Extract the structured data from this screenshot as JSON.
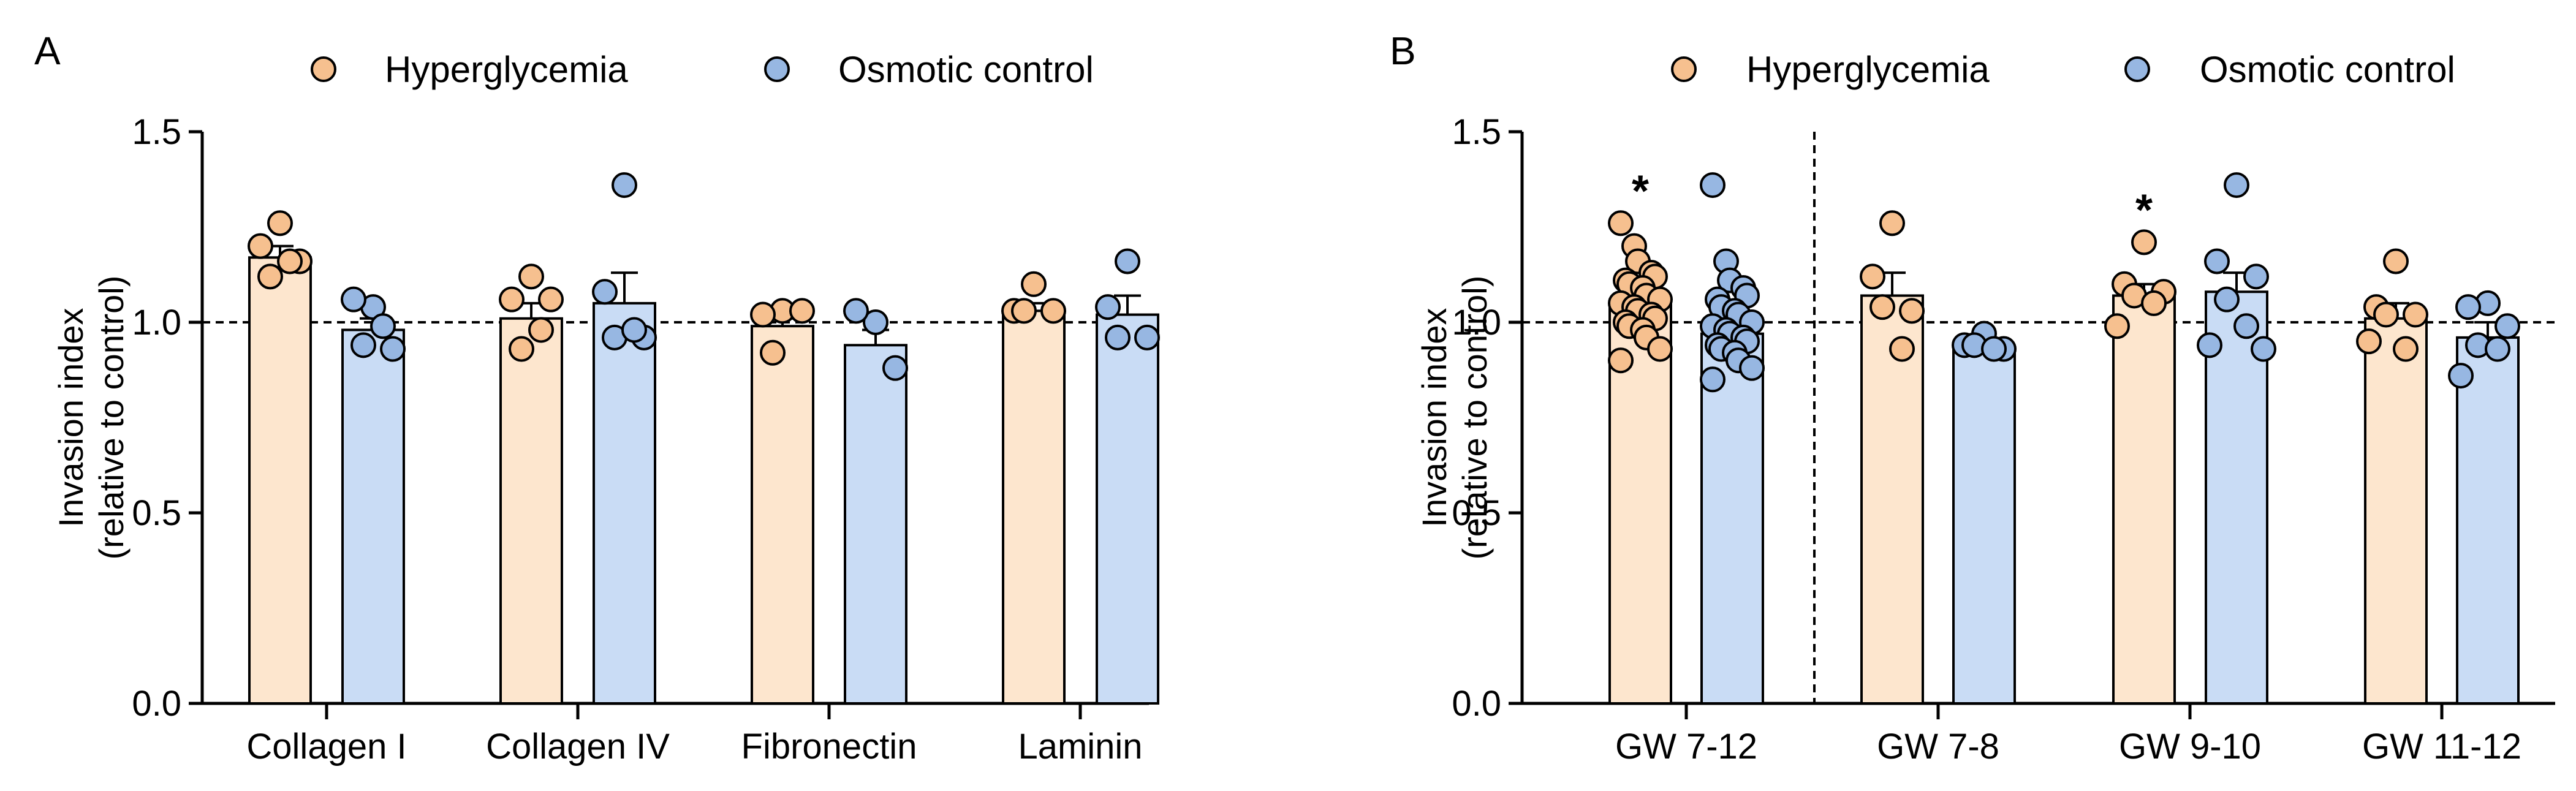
{
  "colors": {
    "hyper_fill": "#fde6ce",
    "hyper_dot": "#f6c08f",
    "osm_fill": "#c9dcf5",
    "osm_dot": "#97b7e2",
    "stroke": "#000000"
  },
  "chart_data": [
    {
      "type": "bar",
      "panel_label": "A",
      "ylabel": [
        "Invasion index",
        "(relative to control)"
      ],
      "ylim": [
        0,
        1.5
      ],
      "yticks": [
        "0.0",
        "0.5",
        "1.0",
        "1.5"
      ],
      "reference_line": 1.0,
      "legend": [
        "Hyperglycemia",
        "Osmotic control"
      ],
      "categories": [
        "Collagen I",
        "Collagen IV",
        "Fibronectin",
        "Laminin"
      ],
      "series": [
        {
          "name": "Hyperglycemia",
          "values": [
            1.17,
            1.01,
            0.99,
            1.03
          ],
          "errors": [
            0.03,
            0.04,
            0.02,
            0.02
          ],
          "points": [
            [
              1.26,
              1.2,
              1.16,
              1.12,
              1.16
            ],
            [
              1.12,
              1.06,
              1.06,
              0.93,
              0.98
            ],
            [
              1.03,
              1.02,
              1.03,
              0.92
            ],
            [
              1.1,
              1.03,
              1.03,
              1.03
            ]
          ]
        },
        {
          "name": "Osmotic control",
          "values": [
            0.98,
            1.05,
            0.94,
            1.02
          ],
          "errors": [
            0.03,
            0.08,
            0.04,
            0.05
          ],
          "points": [
            [
              1.04,
              1.06,
              0.93,
              0.94,
              0.99
            ],
            [
              1.36,
              1.08,
              0.96,
              0.96,
              0.98
            ],
            [
              1.0,
              1.03,
              0.88
            ],
            [
              1.16,
              1.04,
              0.96,
              0.96
            ]
          ]
        }
      ]
    },
    {
      "type": "bar",
      "panel_label": "B",
      "ylabel": [
        "Invasion index",
        "(relative to control)"
      ],
      "ylim": [
        0,
        1.5
      ],
      "yticks": [
        "0.0",
        "0.5",
        "1.0",
        "1.5"
      ],
      "reference_line": 1.0,
      "legend": [
        "Hyperglycemia",
        "Osmotic control"
      ],
      "categories": [
        "GW 7-12",
        "GW 7-8",
        "GW 9-10",
        "GW 11-12"
      ],
      "separator_after_category": 0,
      "significance": [
        {
          "category": 0,
          "series": 0,
          "label": "*"
        },
        {
          "category": 2,
          "series": 0,
          "label": "*"
        }
      ],
      "series": [
        {
          "name": "Hyperglycemia",
          "values": [
            1.05,
            1.07,
            1.07,
            1.01
          ],
          "errors": [
            0.02,
            0.06,
            0.03,
            0.04
          ],
          "points": [
            [
              1.26,
              1.2,
              1.16,
              1.13,
              1.12,
              1.11,
              1.1,
              1.09,
              1.07,
              1.06,
              1.05,
              1.04,
              1.03,
              1.02,
              1.01,
              1.0,
              0.99,
              0.98,
              0.96,
              0.93,
              0.9
            ],
            [
              1.26,
              1.12,
              1.03,
              1.04,
              0.93
            ],
            [
              1.21,
              1.1,
              1.08,
              1.07,
              1.05,
              0.99
            ],
            [
              1.16,
              1.04,
              1.02,
              1.02,
              0.93,
              0.95
            ]
          ]
        },
        {
          "name": "Osmotic control",
          "values": [
            0.97,
            0.93,
            1.08,
            0.96
          ],
          "errors": [
            0.02,
            0.02,
            0.05,
            0.04
          ],
          "points": [
            [
              1.36,
              1.16,
              1.11,
              1.09,
              1.07,
              1.06,
              1.04,
              1.03,
              1.02,
              1.0,
              0.99,
              0.98,
              0.97,
              0.96,
              0.95,
              0.94,
              0.93,
              0.92,
              0.9,
              0.88,
              0.85
            ],
            [
              0.97,
              0.94,
              0.93,
              0.94,
              0.93
            ],
            [
              1.36,
              1.16,
              1.12,
              1.06,
              0.99,
              0.94,
              0.93
            ],
            [
              1.05,
              1.04,
              0.99,
              0.94,
              0.93,
              0.86
            ]
          ]
        }
      ]
    }
  ]
}
